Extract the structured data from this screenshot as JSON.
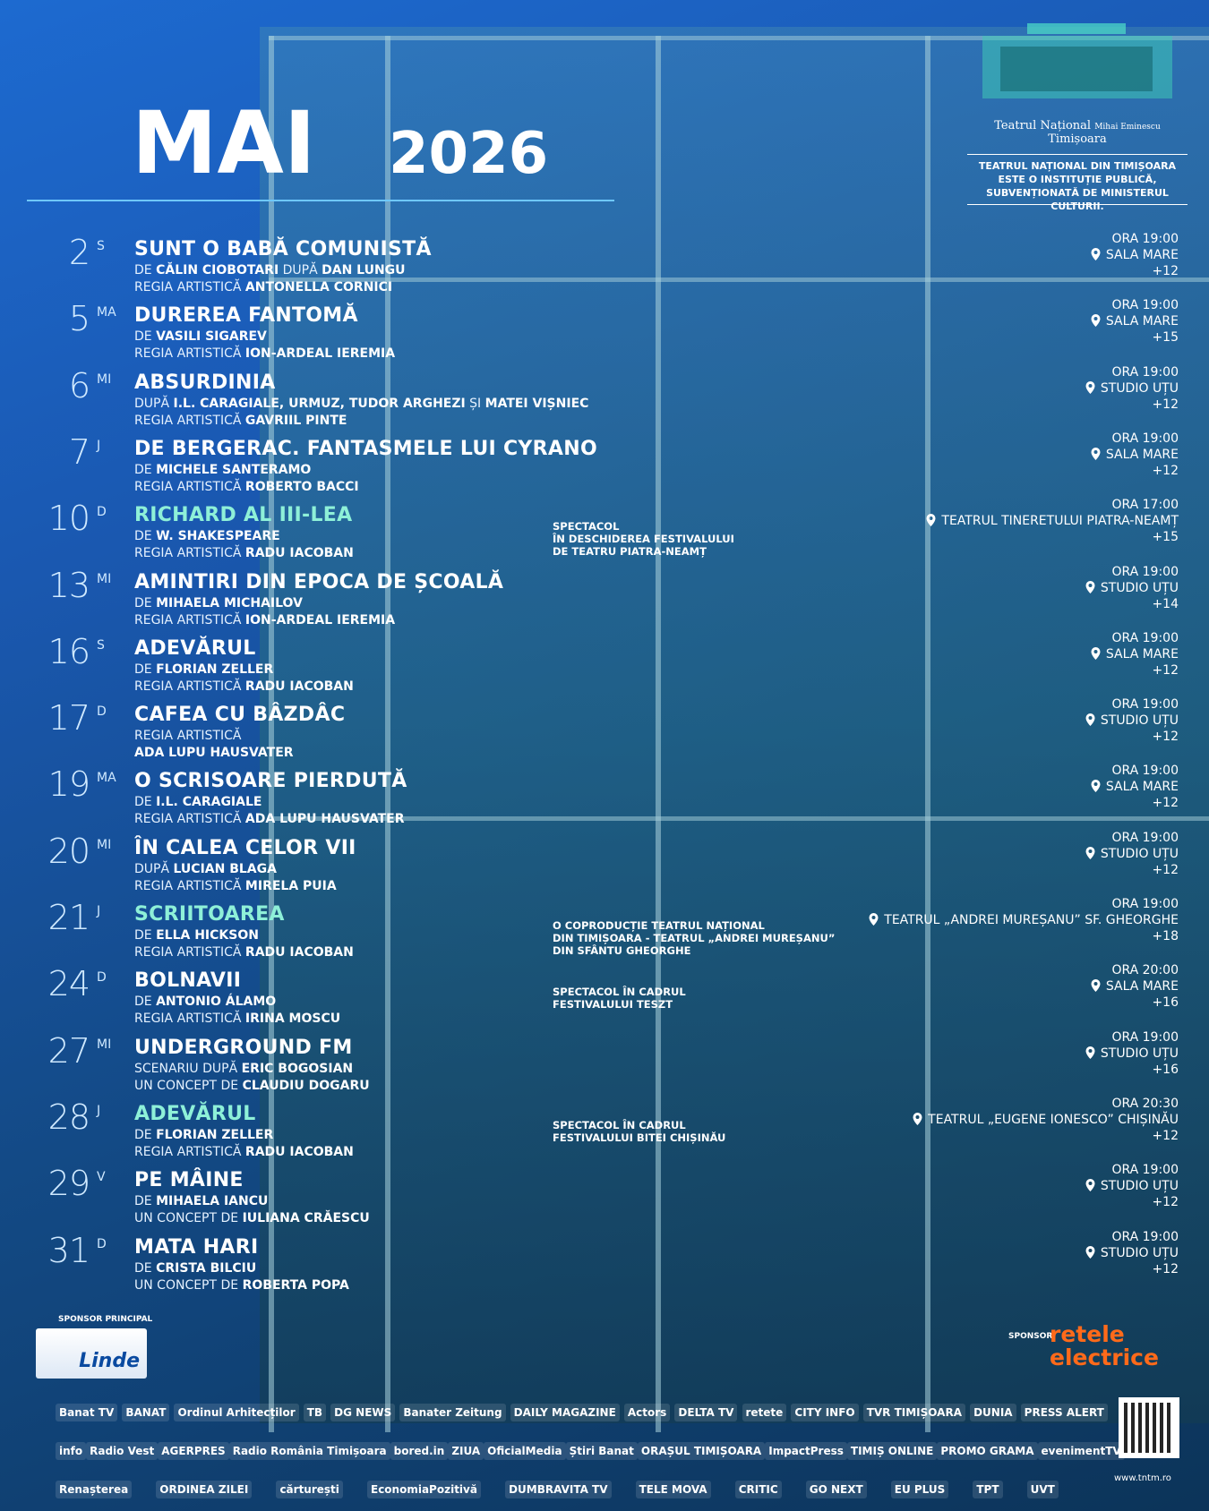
{
  "header": {
    "month": "MAI",
    "year": "2026",
    "logo_text": [
      "Teatrul Național",
      "Mihai Eminescu",
      "Timișoara"
    ],
    "institution_note": [
      "TEATRUL NAȚIONAL DIN TIMIȘOARA",
      "ESTE O INSTITUȚIE PUBLICĂ,",
      "SUBVENȚIONATĂ DE MINISTERUL CULTURII."
    ]
  },
  "events": [
    {
      "day": "2",
      "weekday": "S",
      "title": "SUNT O BABĂ COMUNISTĂ",
      "credits": [
        [
          "DE ",
          "CĂLIN CIOBOTARI",
          " DUPĂ ",
          "DAN LUNGU"
        ],
        [
          "REGIA ARTISTICĂ ",
          "ANTONELLA CORNICI"
        ]
      ],
      "time": "ORA 19:00",
      "venue": "SALA MARE",
      "age": "+12"
    },
    {
      "day": "5",
      "weekday": "MA",
      "title": "DUREREA FANTOMĂ",
      "credits": [
        [
          "DE ",
          "VASILI SIGAREV"
        ],
        [
          "REGIA ARTISTICĂ ",
          "ION-ARDEAL IEREMIA"
        ]
      ],
      "time": "ORA 19:00",
      "venue": "SALA MARE",
      "age": "+15"
    },
    {
      "day": "6",
      "weekday": "MI",
      "title": "ABSURDINIA",
      "credits": [
        [
          "DUPĂ ",
          "I.L. CARAGIALE, URMUZ, TUDOR ARGHEZI",
          " ȘI ",
          "MATEI VIȘNIEC"
        ],
        [
          "REGIA ARTISTICĂ ",
          "GAVRIIL PINTE"
        ]
      ],
      "time": "ORA 19:00",
      "venue": "STUDIO UȚU",
      "age": "+12"
    },
    {
      "day": "7",
      "weekday": "J",
      "title": "DE BERGERAC. FANTASMELE LUI CYRANO",
      "credits": [
        [
          "DE ",
          "MICHELE SANTERAMO"
        ],
        [
          "REGIA ARTISTICĂ ",
          "ROBERTO BACCI"
        ]
      ],
      "time": "ORA 19:00",
      "venue": "SALA MARE",
      "age": "+12"
    },
    {
      "day": "10",
      "weekday": "D",
      "title": "RICHARD AL III-LEA",
      "title_color": "#8ef0d8",
      "credits": [
        [
          "DE ",
          "W. SHAKESPEARE"
        ],
        [
          "REGIA ARTISTICĂ ",
          "RADU IACOBAN"
        ]
      ],
      "note": [
        "SPECTACOL",
        "ÎN DESCHIDEREA FESTIVALULUI",
        "DE TEATRU PIATRA-NEAMȚ"
      ],
      "time": "ORA 17:00",
      "venue": "TEATRUL TINERETULUI PIATRA-NEAMȚ",
      "age": "+15"
    },
    {
      "day": "13",
      "weekday": "MI",
      "title": "AMINTIRI DIN EPOCA DE ȘCOALĂ",
      "credits": [
        [
          "DE ",
          "MIHAELA MICHAILOV"
        ],
        [
          "REGIA ARTISTICĂ ",
          "ION-ARDEAL IEREMIA"
        ]
      ],
      "time": "ORA 19:00",
      "venue": "STUDIO UȚU",
      "age": "+14"
    },
    {
      "day": "16",
      "weekday": "S",
      "title": "ADEVĂRUL",
      "credits": [
        [
          "DE ",
          "FLORIAN ZELLER"
        ],
        [
          "REGIA ARTISTICĂ ",
          "RADU IACOBAN"
        ]
      ],
      "time": "ORA 19:00",
      "venue": "SALA MARE",
      "age": "+12"
    },
    {
      "day": "17",
      "weekday": "D",
      "title": "CAFEA CU BÂZDÂC",
      "credits": [
        [
          "REGIA ARTISTICĂ"
        ],
        [
          "",
          "ADA LUPU HAUSVATER"
        ]
      ],
      "time": "ORA 19:00",
      "venue": "STUDIO UȚU",
      "age": "+12"
    },
    {
      "day": "19",
      "weekday": "MA",
      "title": "O SCRISOARE PIERDUTĂ",
      "credits": [
        [
          "DE ",
          "I.L. CARAGIALE"
        ],
        [
          "REGIA ARTISTICĂ ",
          "ADA LUPU HAUSVATER"
        ]
      ],
      "time": "ORA 19:00",
      "venue": "SALA MARE",
      "age": "+12"
    },
    {
      "day": "20",
      "weekday": "MI",
      "title": "ÎN CALEA CELOR VII",
      "credits": [
        [
          "DUPĂ ",
          "LUCIAN BLAGA"
        ],
        [
          "REGIA ARTISTICĂ ",
          "MIRELA PUIA"
        ]
      ],
      "time": "ORA 19:00",
      "venue": "STUDIO UȚU",
      "age": "+12"
    },
    {
      "day": "21",
      "weekday": "J",
      "title": "SCRIITOAREA",
      "title_color": "#8ef0d8",
      "credits": [
        [
          "DE ",
          "ELLA HICKSON"
        ],
        [
          "REGIA ARTISTICĂ ",
          "RADU IACOBAN"
        ]
      ],
      "note": [
        "O COPRODUCȚIE TEATRUL NAȚIONAL",
        "DIN TIMIȘOARA - TEATRUL „ANDREI MUREȘANU”",
        "DIN SFÂNTU GHEORGHE"
      ],
      "time": "ORA 19:00",
      "venue": "TEATRUL „ANDREI MUREȘANU” SF. GHEORGHE",
      "age": "+18"
    },
    {
      "day": "24",
      "weekday": "D",
      "title": "BOLNAVII",
      "credits": [
        [
          "DE ",
          "ANTONIO ÁLAMO"
        ],
        [
          "REGIA ARTISTICĂ ",
          "IRINA MOSCU"
        ]
      ],
      "note": [
        "SPECTACOL ÎN CADRUL",
        "FESTIVALULUI TESZT"
      ],
      "time": "ORA 20:00",
      "venue": "SALA MARE",
      "age": "+16"
    },
    {
      "day": "27",
      "weekday": "MI",
      "title": "UNDERGROUND FM",
      "credits": [
        [
          "SCENARIU DUPĂ ",
          "ERIC BOGOSIAN"
        ],
        [
          "UN CONCEPT DE ",
          "CLAUDIU DOGARU"
        ]
      ],
      "time": "ORA 19:00",
      "venue": "STUDIO UȚU",
      "age": "+16"
    },
    {
      "day": "28",
      "weekday": "J",
      "title": "ADEVĂRUL",
      "title_color": "#8ef0d8",
      "credits": [
        [
          "DE ",
          "FLORIAN ZELLER"
        ],
        [
          "REGIA ARTISTICĂ ",
          "RADU IACOBAN"
        ]
      ],
      "note": [
        "SPECTACOL ÎN CADRUL",
        "FESTIVALULUI BITEI CHIȘINĂU"
      ],
      "time": "ORA 20:30",
      "venue": "TEATRUL „EUGENE IONESCO” CHIȘINĂU",
      "age": "+12"
    },
    {
      "day": "29",
      "weekday": "V",
      "title": "PE MÂINE",
      "credits": [
        [
          "DE ",
          "MIHAELA IANCU"
        ],
        [
          "UN CONCEPT DE ",
          "IULIANA CRĂESCU"
        ]
      ],
      "time": "ORA 19:00",
      "venue": "STUDIO UȚU",
      "age": "+12"
    },
    {
      "day": "31",
      "weekday": "D",
      "title": "MATA HARI",
      "credits": [
        [
          "DE ",
          "CRISTA BILCIU"
        ],
        [
          "UN CONCEPT DE ",
          "ROBERTA POPA"
        ]
      ],
      "time": "ORA 19:00",
      "venue": "STUDIO UȚU",
      "age": "+12"
    }
  ],
  "sponsors": {
    "main_label": "SPONSOR PRINCIPAL",
    "main": "Linde",
    "label": "SPONSOR",
    "sponsor": [
      "retele",
      "electrice"
    ]
  },
  "partners": [
    [
      "Banat TV",
      "BANAT",
      "Ordinul Arhitecților",
      "TB",
      "DG NEWS",
      "Banater Zeitung",
      "DAILY MAGAZINE",
      "Actors",
      "DELTA TV",
      "retete",
      "CITY INFO",
      "TVR TIMIȘOARA",
      "DUNIA",
      "PRESS ALERT"
    ],
    [
      "info",
      "Radio Vest",
      "AGERPRES",
      "Radio România Timișoara",
      "bored.in",
      "ZIUA",
      "OficialMedia",
      "Știri Banat",
      "ORAȘUL TIMIȘOARA",
      "ImpactPress",
      "TIMIȘ ONLINE",
      "PROMO GRAMA",
      "evenimentTV"
    ],
    [
      "Renașterea",
      "ORDINEA ZILEI",
      "cărturești",
      "EconomiaPozitivă",
      "DUMBRAVITA TV",
      "TELE MOVA",
      "CRITIC",
      "GO NEXT",
      "EU PLUS",
      "TPT",
      "UVT"
    ]
  ],
  "website": "www.tntm.ro"
}
